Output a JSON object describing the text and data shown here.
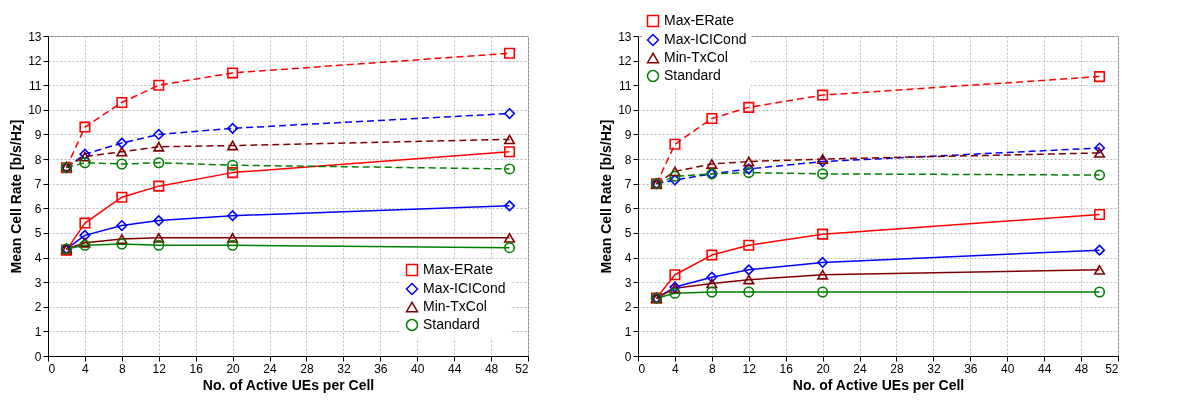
{
  "chart_data": [
    {
      "type": "line",
      "xlabel": "No. of Active UEs per Cell",
      "ylabel": "Mean Cell Rate [b/s/Hz]",
      "x": [
        2,
        4,
        8,
        12,
        20,
        50
      ],
      "xlim": [
        0,
        52
      ],
      "xticks": [
        0,
        4,
        8,
        12,
        16,
        20,
        24,
        28,
        32,
        36,
        40,
        44,
        48,
        52
      ],
      "ylim": [
        0,
        13
      ],
      "yticks": [
        0,
        1,
        2,
        3,
        4,
        5,
        6,
        7,
        8,
        9,
        10,
        11,
        12,
        13
      ],
      "grid": true,
      "legend": "bottom right",
      "series": [
        {
          "name": "Max-ERate",
          "color": "#ff0000",
          "marker": "square",
          "line_style": "solid",
          "values": [
            4.3,
            5.4,
            6.45,
            6.9,
            7.45,
            8.3
          ]
        },
        {
          "name": "Max-ICICond",
          "color": "#0000ff",
          "marker": "diamond",
          "line_style": "solid",
          "values": [
            4.35,
            4.9,
            5.3,
            5.5,
            5.7,
            6.1
          ]
        },
        {
          "name": "Min-TxCol",
          "color": "#800000",
          "marker": "triangle",
          "line_style": "solid",
          "values": [
            4.35,
            4.6,
            4.75,
            4.8,
            4.8,
            4.8
          ]
        },
        {
          "name": "Standard",
          "color": "#008000",
          "marker": "circle",
          "line_style": "solid",
          "values": [
            4.35,
            4.5,
            4.55,
            4.5,
            4.5,
            4.4
          ]
        },
        {
          "color": "#ff0000",
          "marker": "square",
          "line_style": "dashed",
          "values": [
            7.65,
            9.3,
            10.3,
            11.0,
            11.5,
            12.3
          ]
        },
        {
          "color": "#0000ff",
          "marker": "diamond",
          "line_style": "dashed",
          "values": [
            7.65,
            8.2,
            8.65,
            9.0,
            9.25,
            9.85
          ]
        },
        {
          "color": "#800000",
          "marker": "triangle",
          "line_style": "dashed",
          "values": [
            7.7,
            8.1,
            8.3,
            8.5,
            8.55,
            8.8
          ]
        },
        {
          "color": "#008000",
          "marker": "circle",
          "line_style": "dashed",
          "values": [
            7.65,
            7.85,
            7.8,
            7.85,
            7.75,
            7.6
          ]
        }
      ]
    },
    {
      "type": "line",
      "xlabel": "No. of Active UEs per Cell",
      "ylabel": "Mean Cell Rate [b/s/Hz]",
      "x": [
        2,
        4,
        8,
        12,
        20,
        50
      ],
      "xlim": [
        0,
        52
      ],
      "xticks": [
        0,
        4,
        8,
        12,
        16,
        20,
        24,
        28,
        32,
        36,
        40,
        44,
        48,
        52
      ],
      "ylim": [
        0,
        13
      ],
      "yticks": [
        0,
        1,
        2,
        3,
        4,
        5,
        6,
        7,
        8,
        9,
        10,
        11,
        12,
        13
      ],
      "grid": true,
      "legend": "top left",
      "series": [
        {
          "name": "Max-ERate",
          "color": "#ff0000",
          "marker": "square",
          "line_style": "solid",
          "values": [
            2.35,
            3.3,
            4.1,
            4.5,
            4.95,
            5.75
          ]
        },
        {
          "name": "Max-ICICond",
          "color": "#0000ff",
          "marker": "diamond",
          "line_style": "solid",
          "values": [
            2.35,
            2.8,
            3.2,
            3.5,
            3.8,
            4.3
          ]
        },
        {
          "name": "Min-TxCol",
          "color": "#800000",
          "marker": "triangle",
          "line_style": "solid",
          "values": [
            2.35,
            2.75,
            2.95,
            3.1,
            3.3,
            3.5
          ]
        },
        {
          "name": "Standard",
          "color": "#008000",
          "marker": "circle",
          "line_style": "solid",
          "values": [
            2.35,
            2.55,
            2.6,
            2.6,
            2.6,
            2.6
          ]
        },
        {
          "color": "#ff0000",
          "marker": "square",
          "line_style": "dashed",
          "values": [
            7.0,
            8.6,
            9.65,
            10.1,
            10.6,
            11.35
          ]
        },
        {
          "color": "#0000ff",
          "marker": "diamond",
          "line_style": "dashed",
          "values": [
            7.0,
            7.15,
            7.4,
            7.6,
            7.9,
            8.45
          ]
        },
        {
          "color": "#800000",
          "marker": "triangle",
          "line_style": "dashed",
          "values": [
            7.0,
            7.5,
            7.8,
            7.9,
            8.0,
            8.25
          ]
        },
        {
          "color": "#008000",
          "marker": "circle",
          "line_style": "dashed",
          "values": [
            7.0,
            7.3,
            7.4,
            7.45,
            7.4,
            7.35
          ]
        }
      ]
    }
  ]
}
